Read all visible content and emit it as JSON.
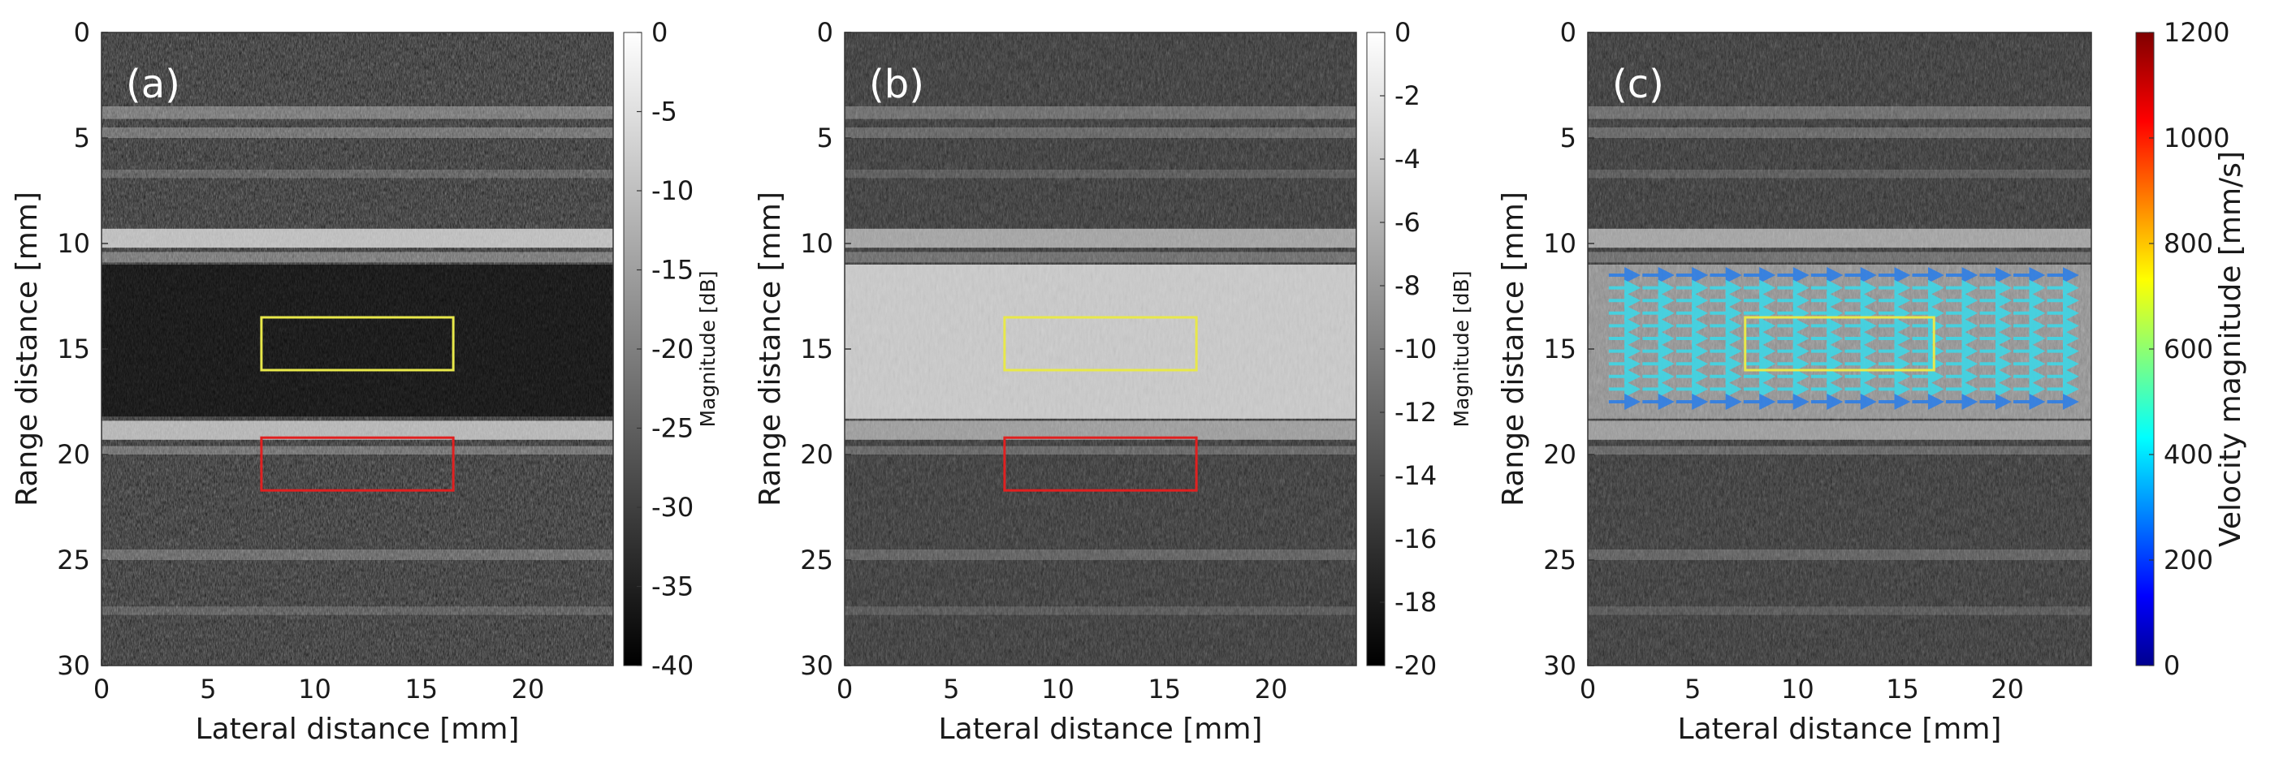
{
  "figure": {
    "panels": [
      {
        "id": "a",
        "label": "(a)",
        "xlabel": "Lateral distance [mm]",
        "ylabel": "Range distance [mm]",
        "xlim": [
          0,
          24
        ],
        "ylim": [
          0,
          30
        ],
        "xticks": [
          "0",
          "5",
          "10",
          "15",
          "20"
        ],
        "yticks": [
          "0",
          "5",
          "10",
          "15",
          "20",
          "25",
          "30"
        ],
        "colorbar": {
          "label": "Magnitude [dB]",
          "range": [
            -40,
            0
          ],
          "ticks": [
            "0",
            "-5",
            "-10",
            "-15",
            "-20",
            "-25",
            "-30",
            "-35",
            "-40"
          ],
          "colormap": "gray"
        },
        "roi_boxes": [
          {
            "color": "#e8e84a",
            "x": [
              7.5,
              16.5
            ],
            "y": [
              13.5,
              16
            ]
          },
          {
            "color": "#e02020",
            "x": [
              7.5,
              16.5
            ],
            "y": [
              19.2,
              21.7
            ]
          }
        ]
      },
      {
        "id": "b",
        "label": "(b)",
        "xlabel": "Lateral distance [mm]",
        "ylabel": "Range distance [mm]",
        "xlim": [
          0,
          24
        ],
        "ylim": [
          0,
          30
        ],
        "xticks": [
          "0",
          "5",
          "10",
          "15",
          "20"
        ],
        "yticks": [
          "0",
          "5",
          "10",
          "15",
          "20",
          "25",
          "30"
        ],
        "colorbar": {
          "label": "Magnitude [dB]",
          "range": [
            -20,
            0
          ],
          "ticks": [
            "0",
            "-2",
            "-4",
            "-6",
            "-8",
            "-10",
            "-12",
            "-14",
            "-16",
            "-18",
            "-20"
          ],
          "colormap": "gray"
        },
        "roi_boxes": [
          {
            "color": "#e8e84a",
            "x": [
              7.5,
              16.5
            ],
            "y": [
              13.5,
              16
            ]
          },
          {
            "color": "#e02020",
            "x": [
              7.5,
              16.5
            ],
            "y": [
              19.2,
              21.7
            ]
          }
        ]
      },
      {
        "id": "c",
        "label": "(c)",
        "xlabel": "Lateral distance [mm]",
        "ylabel": "Range distance [mm]",
        "xlim": [
          0,
          24
        ],
        "ylim": [
          0,
          30
        ],
        "xticks": [
          "0",
          "5",
          "10",
          "15",
          "20"
        ],
        "yticks": [
          "0",
          "5",
          "10",
          "15",
          "20",
          "25",
          "30"
        ],
        "colorbar": {
          "label": "Velocity magnitude [mm/s]",
          "range": [
            0,
            1200
          ],
          "ticks": [
            "1200",
            "1000",
            "800",
            "600",
            "400",
            "200",
            "0"
          ],
          "colormap": "jet"
        },
        "roi_boxes": [
          {
            "color": "#e8e84a",
            "x": [
              7.5,
              16.5
            ],
            "y": [
              13.5,
              16
            ]
          }
        ],
        "vector_field": {
          "x": [
            1,
            23.5
          ],
          "y": [
            11.5,
            17.5
          ],
          "dominant_velocity": 450
        }
      }
    ],
    "colors": {
      "roi_yellow": "#e8e84a",
      "roi_red": "#e02020",
      "vector_cyan": "#3fd6e6",
      "vector_blue": "#2f7fe6"
    }
  }
}
